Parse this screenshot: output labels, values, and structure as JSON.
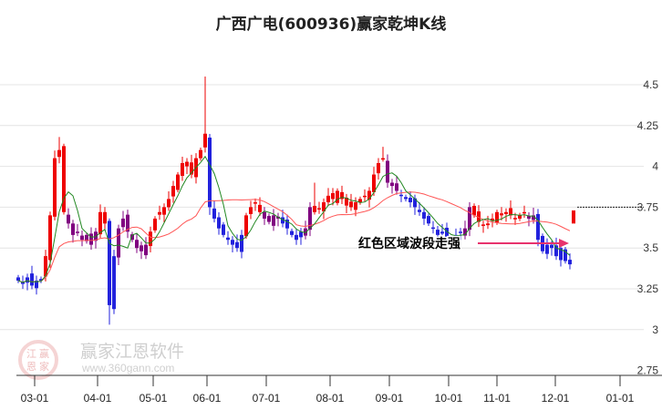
{
  "chart_data": {
    "type": "candlestick",
    "title": "广西广电(600936)赢家乾坤K线",
    "ylim": [
      2.75,
      4.5
    ],
    "yticks": [
      "4.5",
      "4.25",
      "4",
      "3.75",
      "3.5",
      "3.25",
      "3",
      "2.75"
    ],
    "ytick_values": [
      4.5,
      4.25,
      4,
      3.75,
      3.5,
      3.25,
      3,
      2.75
    ],
    "xticks": [
      "03-01",
      "04-01",
      "05-01",
      "06-01",
      "07-01",
      "08-01",
      "09-01",
      "10-01",
      "11-01",
      "12-01",
      "01-01"
    ],
    "closes": [
      3.3,
      3.28,
      3.32,
      3.27,
      3.3,
      3.31,
      3.45,
      3.7,
      4.05,
      4.1,
      3.72,
      3.65,
      3.58,
      3.6,
      3.55,
      3.58,
      3.52,
      3.6,
      3.72,
      3.65,
      3.15,
      3.45,
      3.62,
      3.68,
      3.6,
      3.55,
      3.5,
      3.48,
      3.52,
      3.6,
      3.68,
      3.72,
      3.75,
      3.8,
      3.88,
      3.95,
      4.02,
      4.0,
      3.95,
      4.05,
      4.1,
      4.2,
      3.75,
      3.68,
      3.62,
      3.58,
      3.55,
      3.52,
      3.5,
      3.58,
      3.7,
      3.75,
      3.78,
      3.72,
      3.68,
      3.66,
      3.7,
      3.68,
      3.65,
      3.62,
      3.58,
      3.55,
      3.6,
      3.62,
      3.75,
      3.72,
      3.74,
      3.78,
      3.82,
      3.8,
      3.85,
      3.8,
      3.76,
      3.75,
      3.78,
      3.8,
      3.82,
      3.85,
      3.95,
      4.02,
      4.05,
      3.9,
      3.88,
      3.85,
      3.82,
      3.8,
      3.78,
      3.75,
      3.72,
      3.68,
      3.65,
      3.62,
      3.58,
      3.6,
      3.56,
      3.55,
      3.58,
      3.6,
      3.62,
      3.75,
      3.7,
      3.66,
      3.64,
      3.65,
      3.68,
      3.72,
      3.7,
      3.72,
      3.7,
      3.68,
      3.7,
      3.72,
      3.68,
      3.7,
      3.55,
      3.48,
      3.52,
      3.5,
      3.45,
      3.5,
      3.42,
      3.4
    ],
    "spikes": {
      "9": 4.18,
      "20": 3.03,
      "41": 4.55,
      "65": 3.9,
      "80": 4.12
    },
    "zones": [
      {
        "from": 0,
        "to": 5,
        "color": "#2222dd"
      },
      {
        "from": 6,
        "to": 10,
        "color": "#ee0000"
      },
      {
        "from": 11,
        "to": 17,
        "color": "#800080"
      },
      {
        "from": 18,
        "to": 19,
        "color": "#ee0000"
      },
      {
        "from": 20,
        "to": 21,
        "color": "#2222dd"
      },
      {
        "from": 22,
        "to": 28,
        "color": "#800080"
      },
      {
        "from": 29,
        "to": 41,
        "color": "#ee0000"
      },
      {
        "from": 42,
        "to": 49,
        "color": "#2222dd"
      },
      {
        "from": 50,
        "to": 53,
        "color": "#ee0000"
      },
      {
        "from": 54,
        "to": 57,
        "color": "#800080"
      },
      {
        "from": 58,
        "to": 62,
        "color": "#2222dd"
      },
      {
        "from": 63,
        "to": 64,
        "color": "#800080"
      },
      {
        "from": 65,
        "to": 80,
        "color": "#ee0000"
      },
      {
        "from": 81,
        "to": 83,
        "color": "#800080"
      },
      {
        "from": 84,
        "to": 97,
        "color": "#2222dd"
      },
      {
        "from": 98,
        "to": 99,
        "color": "#800080"
      },
      {
        "from": 100,
        "to": 111,
        "color": "#ee0000"
      },
      {
        "from": 112,
        "to": 113,
        "color": "#800080"
      },
      {
        "from": 114,
        "to": 121,
        "color": "#2222dd"
      }
    ],
    "latest_candle": {
      "open": 3.73,
      "close": 3.65,
      "color": "#ee0000"
    },
    "reference_level": 3.75,
    "ma_short": {
      "period": 5,
      "color": "#228822"
    },
    "ma_long": {
      "period": 20,
      "color": "#ff5555"
    },
    "annotation": "红色区域波段走强",
    "arrow_color": "#e8336d"
  },
  "watermark": {
    "name": "赢家江恩软件",
    "url": "www.360gann.com",
    "seal": "江赢恩家"
  }
}
